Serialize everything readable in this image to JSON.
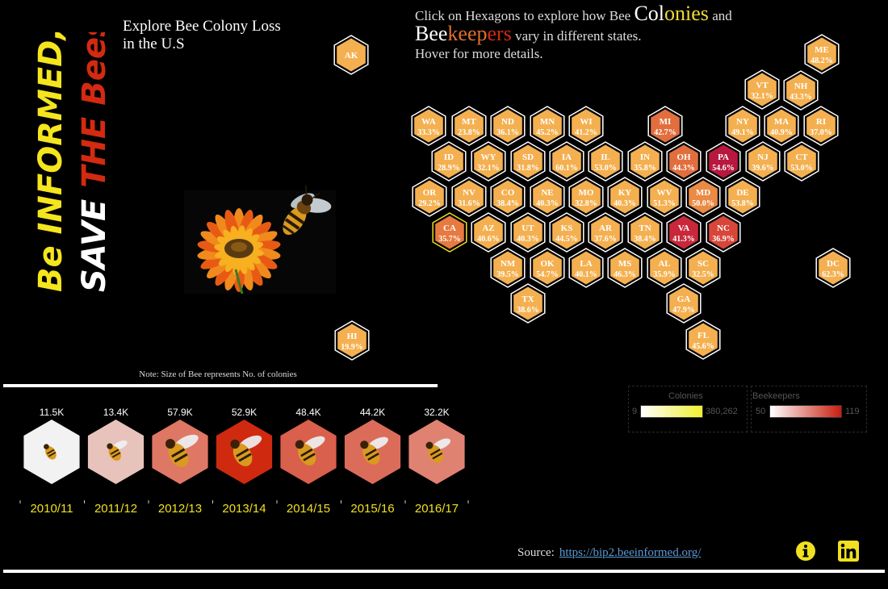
{
  "title_vertical": {
    "line1": "Be INFORMED,",
    "line2_a": "SAVE ",
    "line2_b": "THE Bees"
  },
  "explore_title": "Explore Bee Colony Loss\nin the U.S",
  "instructions": {
    "p1": "Click on Hexagons to explore how Bee ",
    "colonies_a": "Col",
    "colonies_b": "onies",
    "p2": " and",
    "bee_a": "Bee",
    "bee_b": "keep",
    "bee_c": "ers",
    "p3": " vary in different states.",
    "p4": "Hover for more details."
  },
  "note": "Note: Size of Bee represents No. of colonies",
  "states": [
    {
      "abbr": "AK",
      "pct": ""
    },
    {
      "abbr": "HI",
      "pct": "19.9%"
    },
    {
      "abbr": "ME",
      "pct": "48.2%"
    },
    {
      "abbr": "VT",
      "pct": "32.1%"
    },
    {
      "abbr": "NH",
      "pct": "43.3%"
    },
    {
      "abbr": "WA",
      "pct": "33.3%"
    },
    {
      "abbr": "MT",
      "pct": "23.8%"
    },
    {
      "abbr": "ND",
      "pct": "36.1%"
    },
    {
      "abbr": "MN",
      "pct": "45.2%"
    },
    {
      "abbr": "WI",
      "pct": "41.2%"
    },
    {
      "abbr": "MI",
      "pct": "42.7%"
    },
    {
      "abbr": "NY",
      "pct": "49.1%"
    },
    {
      "abbr": "MA",
      "pct": "40.9%"
    },
    {
      "abbr": "RI",
      "pct": "37.0%"
    },
    {
      "abbr": "ID",
      "pct": "28.9%"
    },
    {
      "abbr": "WY",
      "pct": "32.1%"
    },
    {
      "abbr": "SD",
      "pct": "31.8%"
    },
    {
      "abbr": "IA",
      "pct": "60.1%"
    },
    {
      "abbr": "IL",
      "pct": "53.0%"
    },
    {
      "abbr": "IN",
      "pct": "35.8%"
    },
    {
      "abbr": "OH",
      "pct": "44.3%"
    },
    {
      "abbr": "PA",
      "pct": "54.6%"
    },
    {
      "abbr": "NJ",
      "pct": "39.6%"
    },
    {
      "abbr": "CT",
      "pct": "53.0%"
    },
    {
      "abbr": "OR",
      "pct": "29.2%"
    },
    {
      "abbr": "NV",
      "pct": "31.6%"
    },
    {
      "abbr": "CO",
      "pct": "38.4%"
    },
    {
      "abbr": "NE",
      "pct": "40.3%"
    },
    {
      "abbr": "MO",
      "pct": "32.8%"
    },
    {
      "abbr": "KY",
      "pct": "40.3%"
    },
    {
      "abbr": "WV",
      "pct": "51.3%"
    },
    {
      "abbr": "MD",
      "pct": "50.0%"
    },
    {
      "abbr": "DE",
      "pct": "53.8%"
    },
    {
      "abbr": "CA",
      "pct": "35.7%"
    },
    {
      "abbr": "AZ",
      "pct": "40.6%"
    },
    {
      "abbr": "UT",
      "pct": "40.3%"
    },
    {
      "abbr": "KS",
      "pct": "44.5%"
    },
    {
      "abbr": "AR",
      "pct": "37.6%"
    },
    {
      "abbr": "TN",
      "pct": "38.4%"
    },
    {
      "abbr": "VA",
      "pct": "41.3%"
    },
    {
      "abbr": "NC",
      "pct": "36.9%"
    },
    {
      "abbr": "NM",
      "pct": "39.5%"
    },
    {
      "abbr": "OK",
      "pct": "54.7%"
    },
    {
      "abbr": "LA",
      "pct": "40.1%"
    },
    {
      "abbr": "MS",
      "pct": "46.3%"
    },
    {
      "abbr": "AL",
      "pct": "35.9%"
    },
    {
      "abbr": "SC",
      "pct": "32.5%"
    },
    {
      "abbr": "DC",
      "pct": "62.3%"
    },
    {
      "abbr": "TX",
      "pct": "38.6%"
    },
    {
      "abbr": "GA",
      "pct": "47.9%"
    },
    {
      "abbr": "FL",
      "pct": "45.6%"
    }
  ],
  "years": [
    {
      "label": "2010/11",
      "colonies": "11.5K",
      "fill": "#f2f2f2"
    },
    {
      "label": "2011/12",
      "colonies": "13.4K",
      "fill": "#e8c3bc"
    },
    {
      "label": "2012/13",
      "colonies": "57.9K",
      "fill": "#df7765"
    },
    {
      "label": "2013/14",
      "colonies": "52.9K",
      "fill": "#cf2a10"
    },
    {
      "label": "2014/15",
      "colonies": "48.4K",
      "fill": "#d9604c"
    },
    {
      "label": "2015/16",
      "colonies": "44.2K",
      "fill": "#dc6c5a"
    },
    {
      "label": "2016/17",
      "colonies": "32.2K",
      "fill": "#e08272"
    }
  ],
  "legend_colonies": {
    "title": "Colonies",
    "min": "9",
    "max": "380,262"
  },
  "legend_beekeepers": {
    "title": "Beekeepers",
    "min": "50",
    "max": "119"
  },
  "source": {
    "label": "Source:",
    "link": "https://bip2.beeinformed.org/"
  },
  "colors": {
    "background": "#000000",
    "yellow": "#f0dc32",
    "red": "#cf2a10"
  }
}
